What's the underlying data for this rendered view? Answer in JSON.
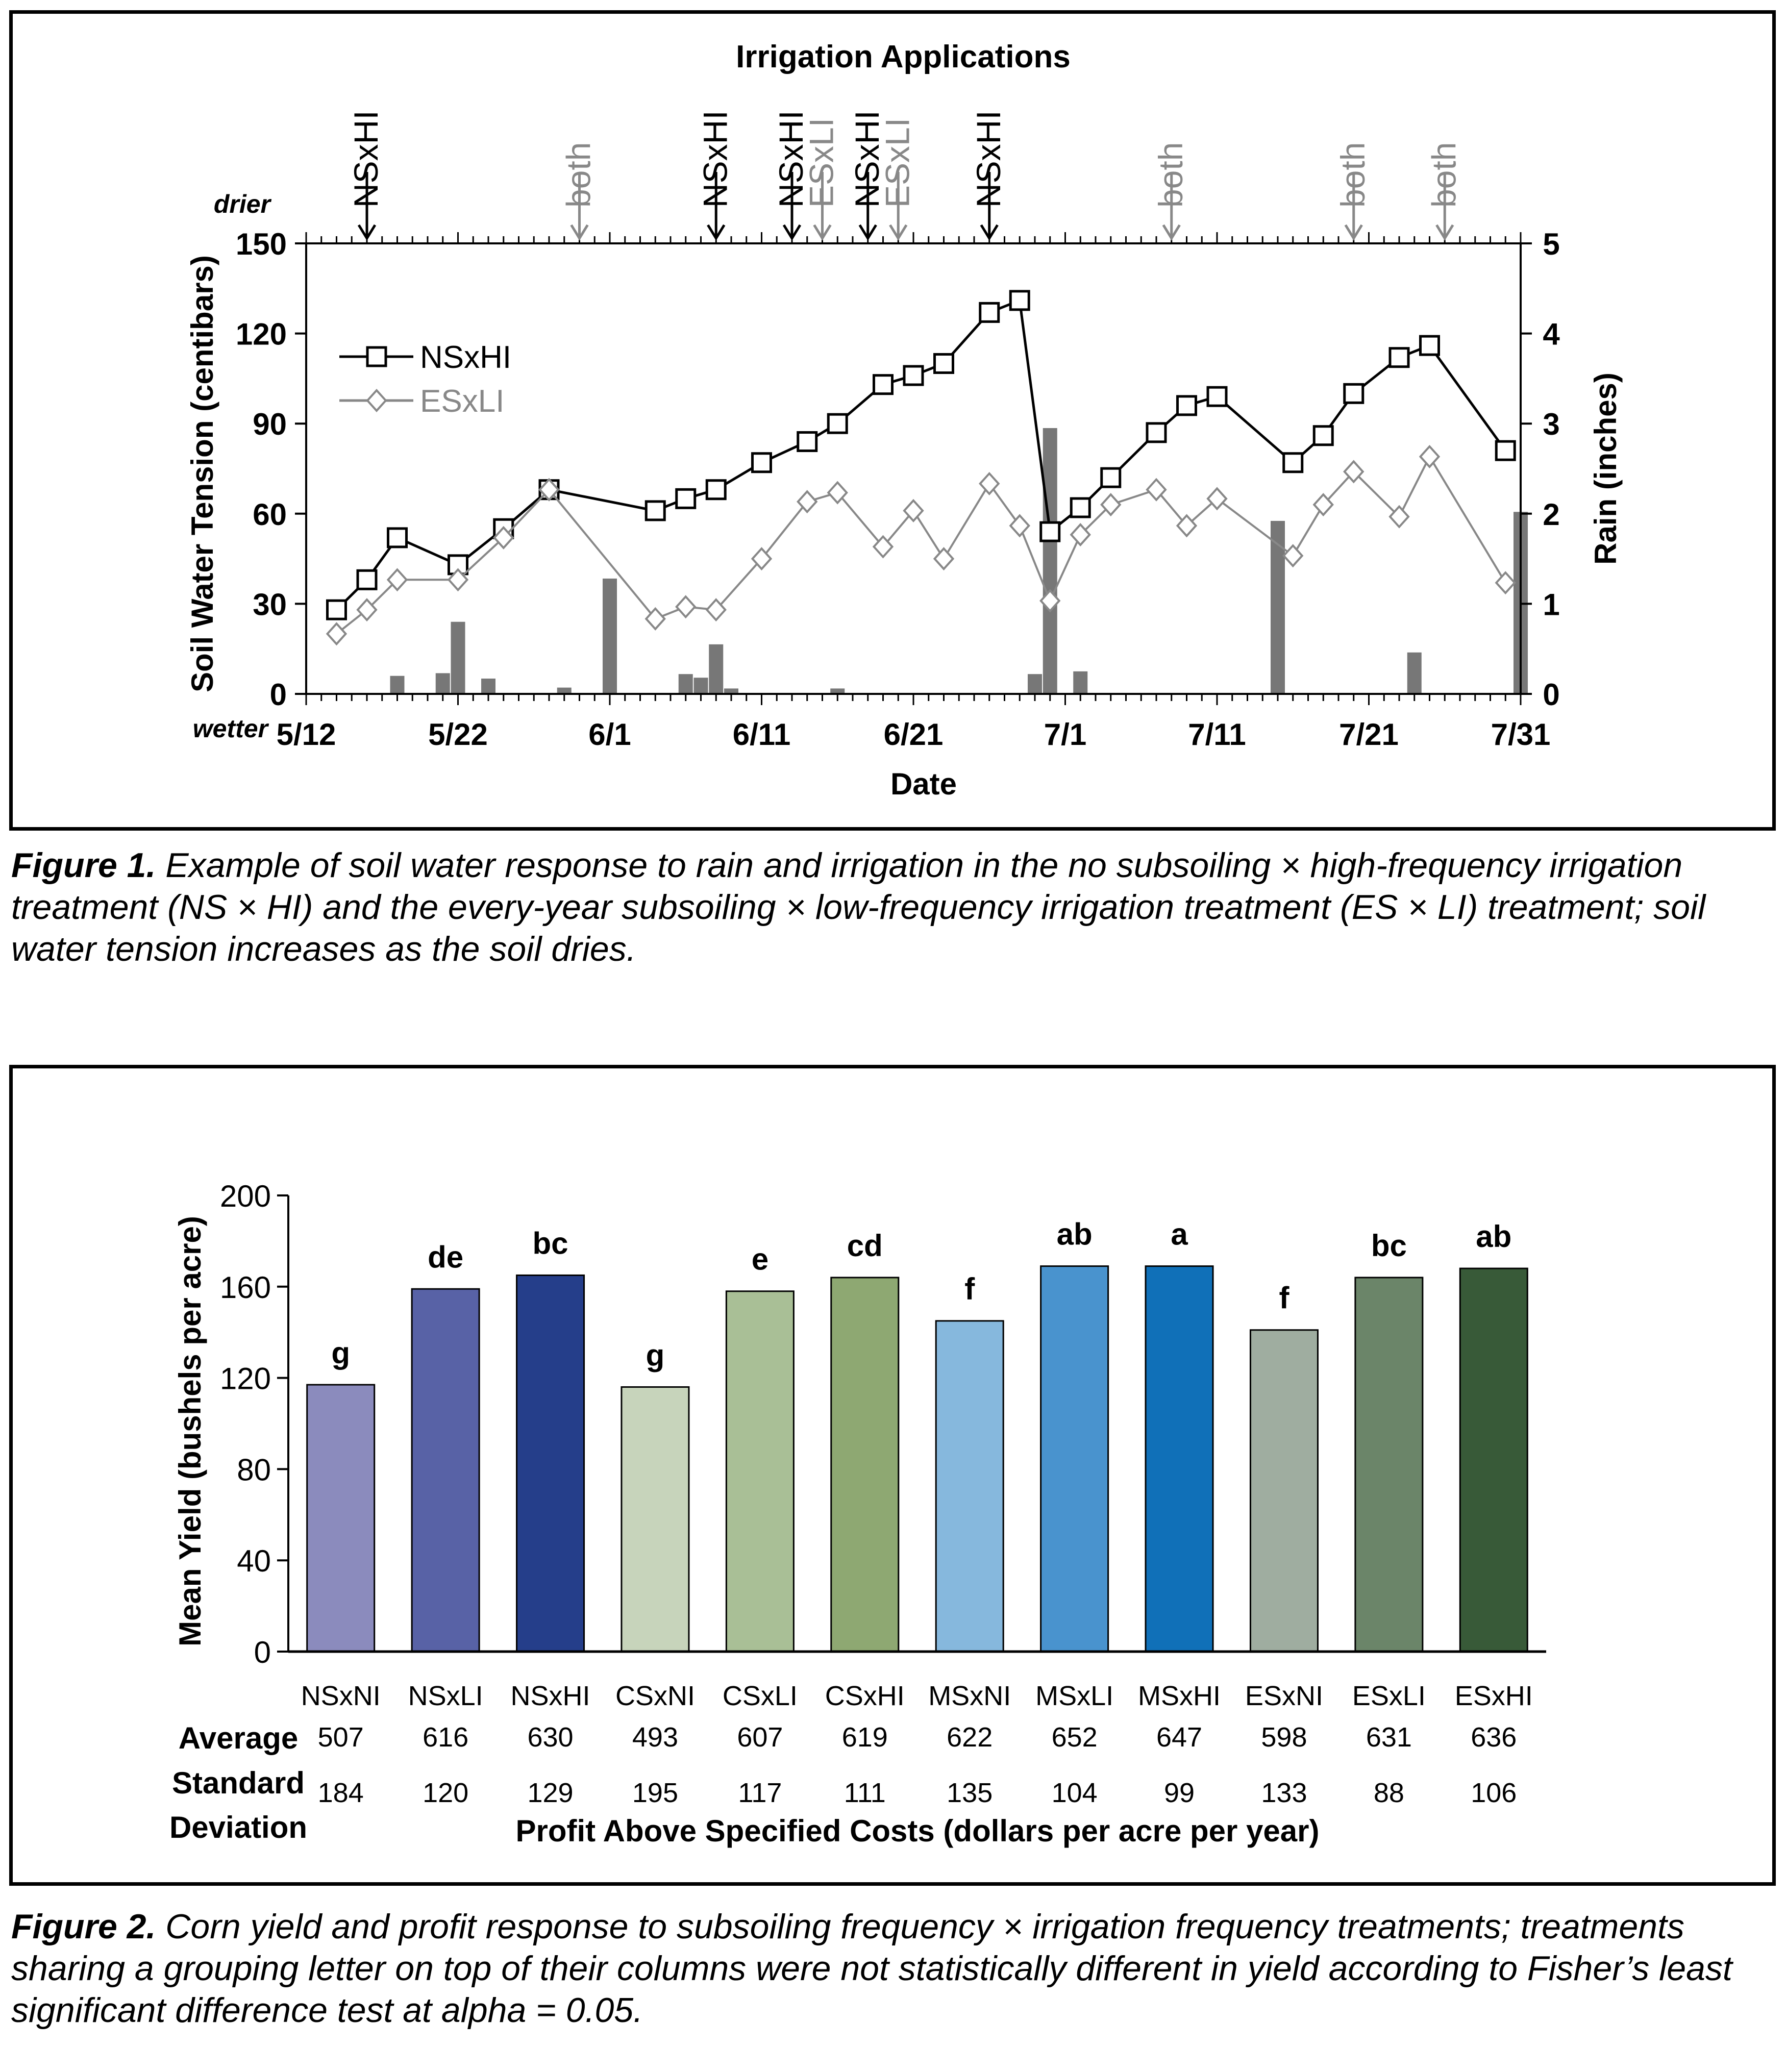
{
  "figure1": {
    "caption_label": "Figure 1.",
    "caption_text": "Example of soil water response to rain and irrigation in the no subsoiling × high-frequency irrigation treatment (NS × HI) and the every-year subsoiling × low-frequency irrigation treatment (ES × LI) treatment; soil water tension increases as the soil dries."
  },
  "figure2": {
    "caption_label": "Figure 2.",
    "caption_text": "Corn yield and profit response to subsoiling frequency × irrigation frequency treatments; treatments sharing a grouping letter on top of their columns were not statistically different in yield according to Fisher’s least significant difference test at alpha = 0.05."
  },
  "chart_data": [
    {
      "type": "line",
      "title": "Irrigation Applications",
      "xlabel": "Date",
      "ylabel": "Soil Water Tension (centibars)",
      "y2label": "Rain (inches)",
      "y_top_note": "drier",
      "y_bottom_note": "wetter",
      "x_ticks": [
        "5/12",
        "5/22",
        "6/1",
        "6/11",
        "6/21",
        "7/1",
        "7/11",
        "7/21",
        "7/31"
      ],
      "x_range_days": [
        0,
        80
      ],
      "ylim": [
        0,
        150
      ],
      "yticks": [
        0,
        30,
        60,
        90,
        120,
        150
      ],
      "y2lim": [
        0,
        5
      ],
      "y2ticks": [
        0,
        1,
        2,
        3,
        4,
        5
      ],
      "legend_position": "top-left",
      "series": [
        {
          "name": "NSxHI",
          "color": "#000000",
          "marker": "square",
          "x": [
            "5/14",
            "5/16",
            "5/18",
            "5/22",
            "5/25",
            "5/28",
            "6/4",
            "6/6",
            "6/8",
            "6/11",
            "6/14",
            "6/16",
            "6/19",
            "6/21",
            "6/23",
            "6/26",
            "6/28",
            "6/30",
            "7/2",
            "7/4",
            "7/7",
            "7/9",
            "7/11",
            "7/16",
            "7/18",
            "7/20",
            "7/23",
            "7/25",
            "7/30"
          ],
          "y": [
            28,
            38,
            52,
            43,
            55,
            68,
            61,
            65,
            68,
            77,
            84,
            90,
            103,
            106,
            110,
            127,
            131,
            54,
            62,
            72,
            87,
            96,
            99,
            77,
            86,
            100,
            112,
            116,
            81
          ]
        },
        {
          "name": "ESxLI",
          "color": "#888888",
          "marker": "diamond",
          "x": [
            "5/14",
            "5/16",
            "5/18",
            "5/22",
            "5/25",
            "5/28",
            "6/4",
            "6/6",
            "6/8",
            "6/11",
            "6/14",
            "6/16",
            "6/19",
            "6/21",
            "6/23",
            "6/26",
            "6/28",
            "6/30",
            "7/2",
            "7/4",
            "7/7",
            "7/9",
            "7/11",
            "7/16",
            "7/18",
            "7/20",
            "7/23",
            "7/25",
            "7/30"
          ],
          "y": [
            20,
            28,
            38,
            38,
            52,
            68,
            25,
            29,
            28,
            45,
            64,
            67,
            49,
            61,
            45,
            70,
            56,
            31,
            53,
            63,
            68,
            56,
            65,
            46,
            63,
            74,
            59,
            79,
            37
          ]
        }
      ],
      "rain_bars": {
        "name": "Rain",
        "color": "#777777",
        "x": [
          "5/18",
          "5/21",
          "5/22",
          "5/24",
          "5/29",
          "6/1",
          "6/6",
          "6/7",
          "6/8",
          "6/9",
          "6/16",
          "6/29",
          "6/30",
          "7/2",
          "7/15",
          "7/24",
          "7/31"
        ],
        "values": [
          0.2,
          0.23,
          0.8,
          0.17,
          0.07,
          1.28,
          0.22,
          0.18,
          0.55,
          0.06,
          0.06,
          0.22,
          2.95,
          0.25,
          1.92,
          0.46,
          2.02
        ]
      },
      "irrigation_events": [
        {
          "label": "NSxHI",
          "x": "5/16",
          "color": "#000000"
        },
        {
          "label": "both",
          "x": "5/30",
          "color": "#888888"
        },
        {
          "label": "NSxHI",
          "x": "6/8",
          "color": "#000000"
        },
        {
          "label": "NSxHI",
          "x": "6/13",
          "color": "#000000"
        },
        {
          "label": "ESxLI",
          "x": "6/15",
          "color": "#888888"
        },
        {
          "label": "NSxHI",
          "x": "6/18",
          "color": "#000000"
        },
        {
          "label": "ESxLI",
          "x": "6/20",
          "color": "#888888"
        },
        {
          "label": "NSxHI",
          "x": "6/26",
          "color": "#000000"
        },
        {
          "label": "both",
          "x": "7/8",
          "color": "#888888"
        },
        {
          "label": "both",
          "x": "7/20",
          "color": "#888888"
        },
        {
          "label": "both",
          "x": "7/26",
          "color": "#888888"
        }
      ]
    },
    {
      "type": "bar",
      "ylabel": "Mean Yield (bushels per acre)",
      "ylim": [
        0,
        200
      ],
      "yticks": [
        0,
        40,
        80,
        120,
        160,
        200
      ],
      "categories": [
        "NSxNI",
        "NSxLI",
        "NSxHI",
        "CSxNI",
        "CSxLI",
        "CSxHI",
        "MSxNI",
        "MSxLI",
        "MSxHI",
        "ESxNI",
        "ESxLI",
        "ESxHI"
      ],
      "values": [
        117,
        159,
        165,
        116,
        158,
        164,
        145,
        169,
        169,
        141,
        164,
        168
      ],
      "groups": [
        "g",
        "de",
        "bc",
        "g",
        "e",
        "cd",
        "f",
        "ab",
        "a",
        "f",
        "bc",
        "ab"
      ],
      "colors": [
        "#8b8bbd",
        "#5862a6",
        "#253e8a",
        "#c7d4bb",
        "#a9bf96",
        "#8ea872",
        "#86b8dd",
        "#4993ce",
        "#1070b8",
        "#9fada0",
        "#6b8569",
        "#385a38"
      ],
      "table": {
        "row1_label": "Average",
        "row1_values": [
          "507",
          "616",
          "630",
          "493",
          "607",
          "619",
          "622",
          "652",
          "647",
          "598",
          "631",
          "636"
        ],
        "row2_label_line1": "Standard",
        "row2_label_line2": "Deviation",
        "row2_values": [
          "184",
          "120",
          "129",
          "195",
          "117",
          "111",
          "135",
          "104",
          "99",
          "133",
          "88",
          "106"
        ],
        "table_title": "Profit Above Specified Costs (dollars per acre per year)"
      }
    }
  ]
}
